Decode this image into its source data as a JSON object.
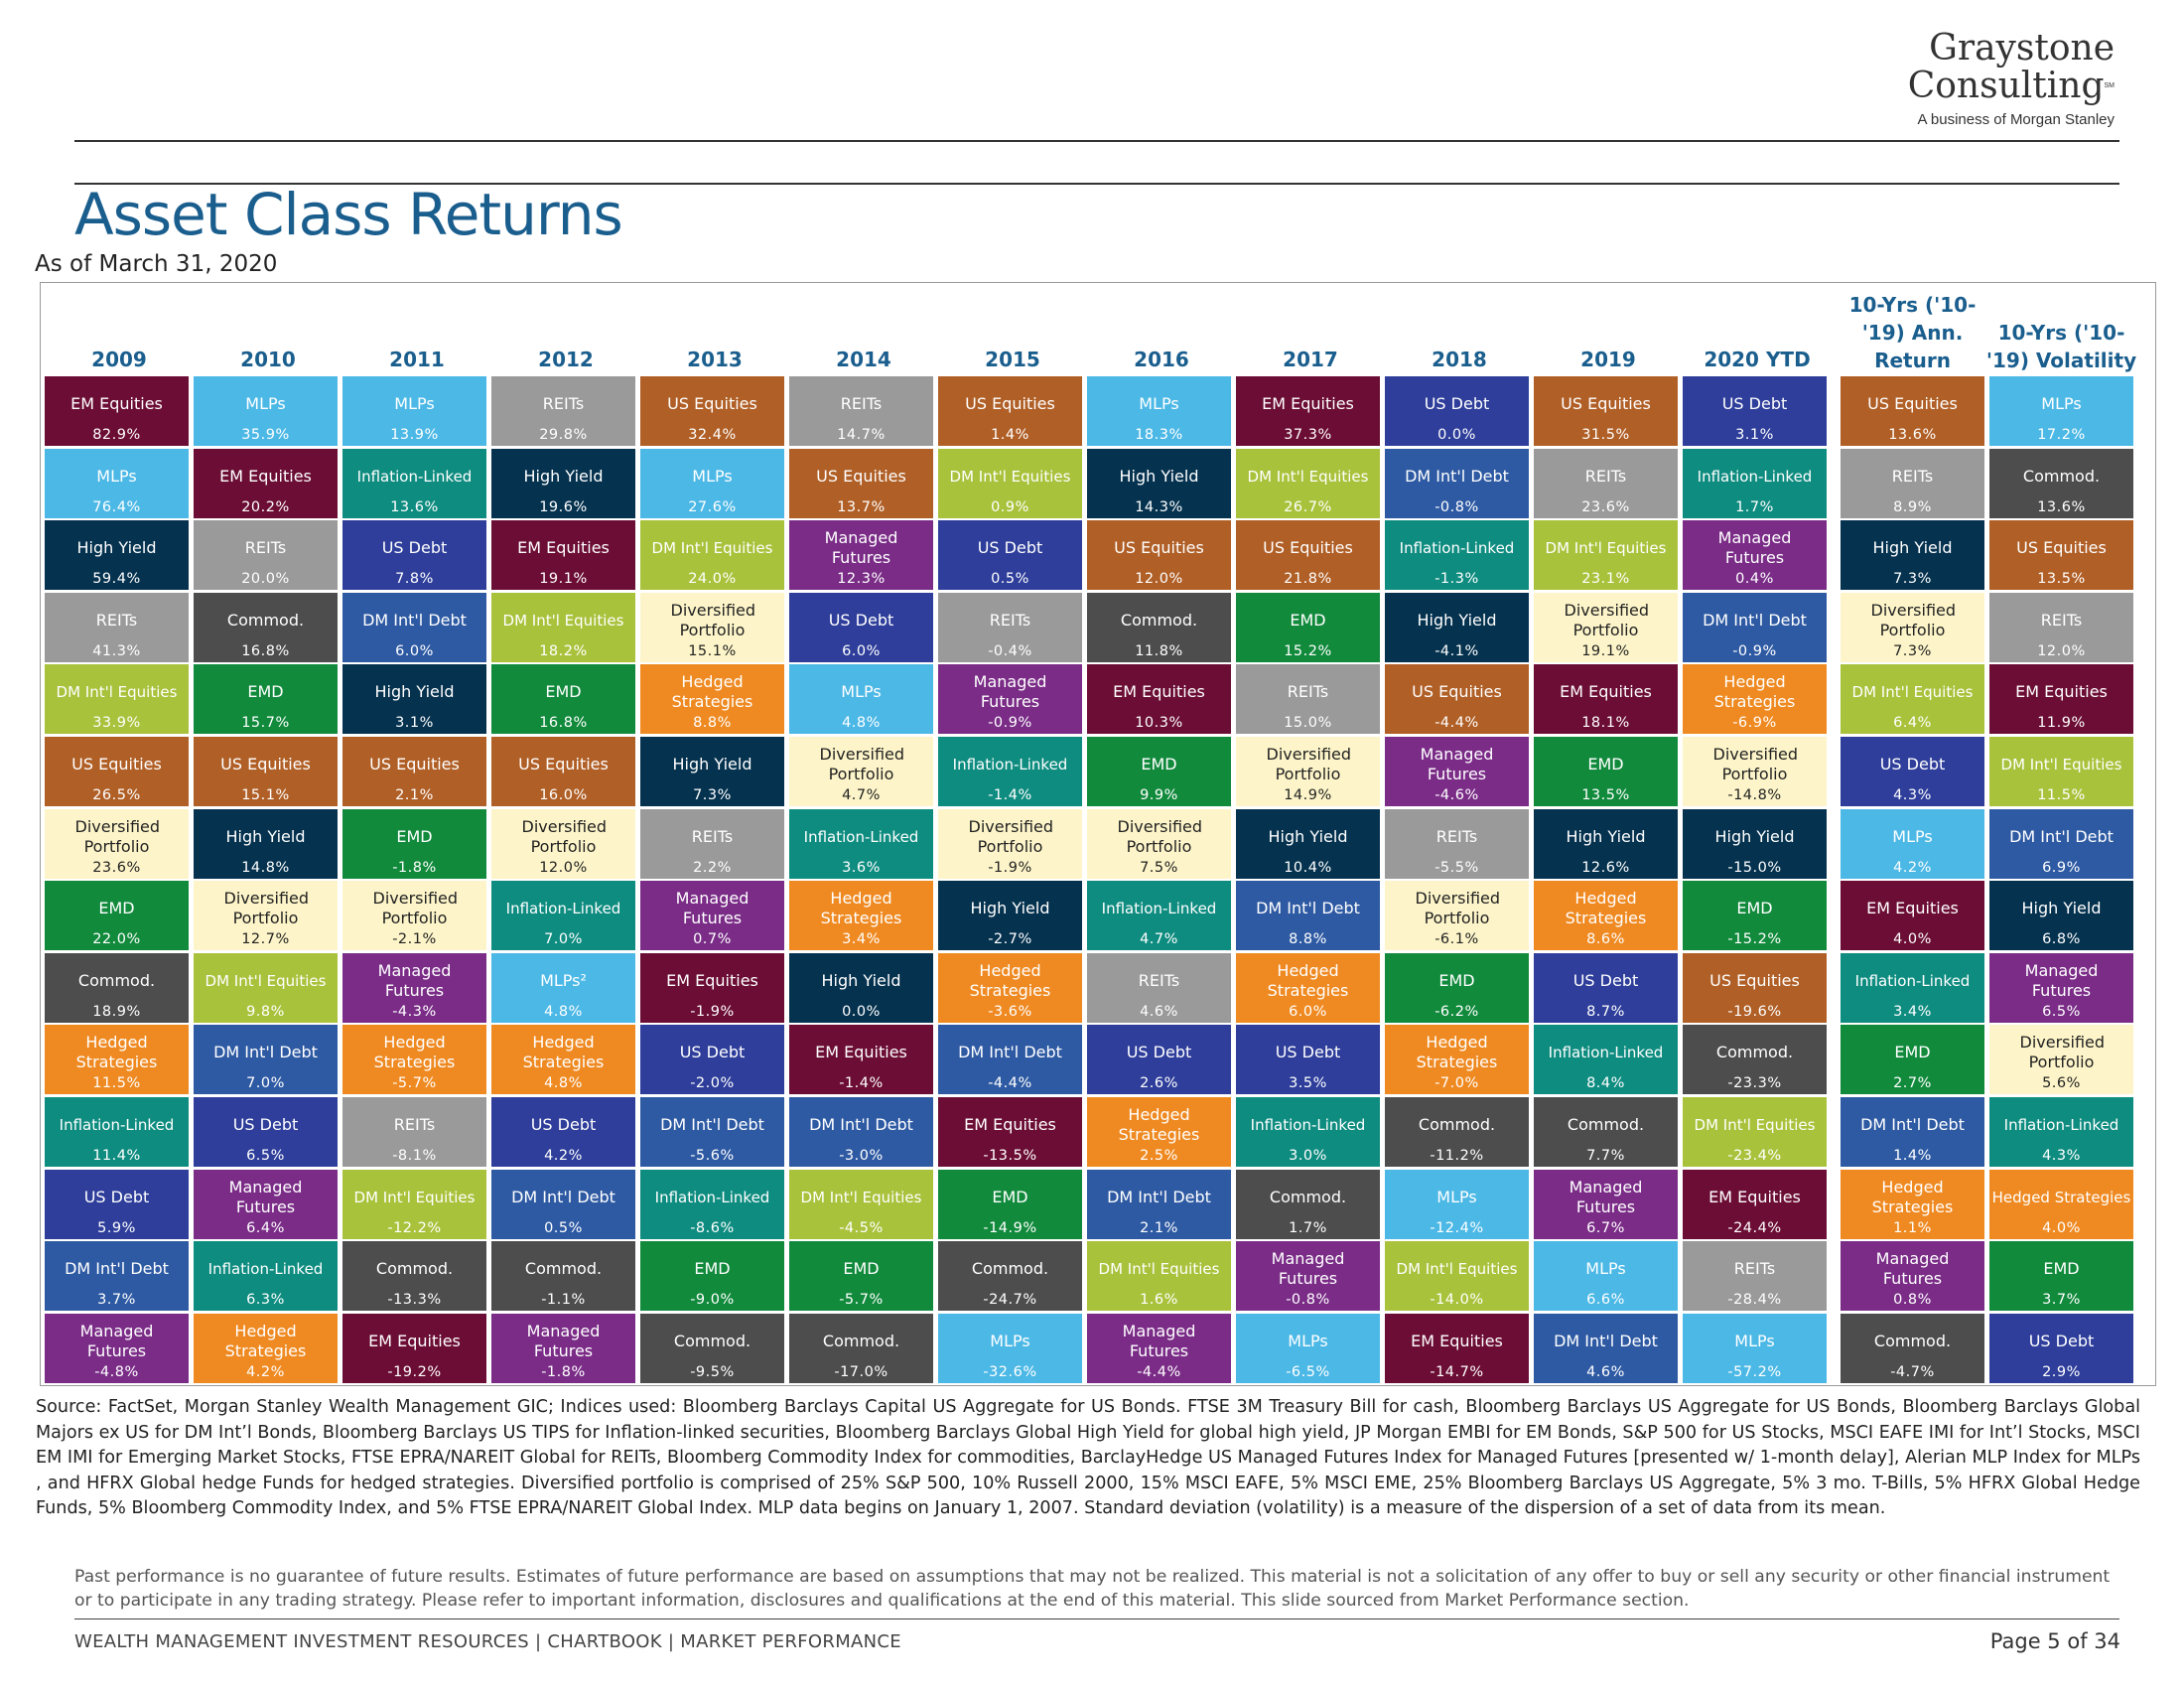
{
  "brand": {
    "name_line1": "Graystone",
    "name_line2": "Consulting",
    "sm_mark": "SM",
    "tagline": "A business of Morgan Stanley"
  },
  "title": "Asset Class Returns",
  "subtitle": "As of March 31, 2020",
  "colors": {
    "title": "#1a5e8e",
    "EM Equities": "#6b0d34",
    "MLPs": "#4cb8e6",
    "REITs": "#9a9a9a",
    "US Equities": "#b05f26",
    "High Yield": "#05324f",
    "Inflation-Linked": "#0f8c80",
    "DM Int'l Equities": "#a9c23c",
    "Managed Futures": "#7a2c87",
    "Diversified Portfolio": "#fdf5c9",
    "US Debt": "#2e3e9a",
    "DM Int'l Debt": "#2e5aa3",
    "EMD": "#118a3c",
    "Commod.": "#4d4d4d",
    "Hedged Strategies": "#ef8a22"
  },
  "chart_data": {
    "type": "table",
    "title": "Asset Class Returns",
    "subtitle": "As of March 31, 2020",
    "columns": [
      {
        "header": "2009",
        "cells": [
          [
            "EM Equities",
            "82.9%"
          ],
          [
            "MLPs",
            "76.4%"
          ],
          [
            "High Yield",
            "59.4%"
          ],
          [
            "REITs",
            "41.3%"
          ],
          [
            "DM Int'l Equities",
            "33.9%"
          ],
          [
            "US Equities",
            "26.5%"
          ],
          [
            "Diversified Portfolio",
            "23.6%"
          ],
          [
            "EMD",
            "22.0%"
          ],
          [
            "Commod.",
            "18.9%"
          ],
          [
            "Hedged Strategies",
            "11.5%"
          ],
          [
            "Inflation-Linked",
            "11.4%"
          ],
          [
            "US Debt",
            "5.9%"
          ],
          [
            "DM Int'l Debt",
            "3.7%"
          ],
          [
            "Managed Futures",
            "-4.8%"
          ]
        ]
      },
      {
        "header": "2010",
        "cells": [
          [
            "MLPs",
            "35.9%"
          ],
          [
            "EM Equities",
            "20.2%"
          ],
          [
            "REITs",
            "20.0%"
          ],
          [
            "Commod.",
            "16.8%"
          ],
          [
            "EMD",
            "15.7%"
          ],
          [
            "US Equities",
            "15.1%"
          ],
          [
            "High Yield",
            "14.8%"
          ],
          [
            "Diversified Portfolio",
            "12.7%"
          ],
          [
            "DM Int'l Equities",
            "9.8%"
          ],
          [
            "DM Int'l Debt",
            "7.0%"
          ],
          [
            "US Debt",
            "6.5%"
          ],
          [
            "Managed Futures",
            "6.4%"
          ],
          [
            "Inflation-Linked",
            "6.3%"
          ],
          [
            "Hedged Strategies",
            "4.2%"
          ]
        ]
      },
      {
        "header": "2011",
        "cells": [
          [
            "MLPs",
            "13.9%"
          ],
          [
            "Inflation-Linked",
            "13.6%"
          ],
          [
            "US Debt",
            "7.8%"
          ],
          [
            "DM Int'l Debt",
            "6.0%"
          ],
          [
            "High Yield",
            "3.1%"
          ],
          [
            "US Equities",
            "2.1%"
          ],
          [
            "EMD",
            "-1.8%"
          ],
          [
            "Diversified Portfolio",
            "-2.1%"
          ],
          [
            "Managed Futures",
            "-4.3%"
          ],
          [
            "Hedged Strategies",
            "-5.7%"
          ],
          [
            "REITs",
            "-8.1%"
          ],
          [
            "DM Int'l Equities",
            "-12.2%"
          ],
          [
            "Commod.",
            "-13.3%"
          ],
          [
            "EM Equities",
            "-19.2%"
          ]
        ]
      },
      {
        "header": "2012",
        "cells": [
          [
            "REITs",
            "29.8%"
          ],
          [
            "High Yield",
            "19.6%"
          ],
          [
            "EM Equities",
            "19.1%"
          ],
          [
            "DM Int'l Equities",
            "18.2%"
          ],
          [
            "EMD",
            "16.8%"
          ],
          [
            "US Equities",
            "16.0%"
          ],
          [
            "Diversified Portfolio",
            "12.0%"
          ],
          [
            "Inflation-Linked",
            "7.0%"
          ],
          [
            "MLPs²",
            "4.8%"
          ],
          [
            "Hedged Strategies",
            "4.8%"
          ],
          [
            "US Debt",
            "4.2%"
          ],
          [
            "DM Int'l Debt",
            "0.5%"
          ],
          [
            "Commod.",
            "-1.1%"
          ],
          [
            "Managed Futures",
            "-1.8%"
          ]
        ]
      },
      {
        "header": "2013",
        "cells": [
          [
            "US Equities",
            "32.4%"
          ],
          [
            "MLPs",
            "27.6%"
          ],
          [
            "DM Int'l Equities",
            "24.0%"
          ],
          [
            "Diversified Portfolio",
            "15.1%"
          ],
          [
            "Hedged Strategies",
            "8.8%"
          ],
          [
            "High Yield",
            "7.3%"
          ],
          [
            "REITs",
            "2.2%"
          ],
          [
            "Managed Futures",
            "0.7%"
          ],
          [
            "EM Equities",
            "-1.9%"
          ],
          [
            "US Debt",
            "-2.0%"
          ],
          [
            "DM Int'l Debt",
            "-5.6%"
          ],
          [
            "Inflation-Linked",
            "-8.6%"
          ],
          [
            "EMD",
            "-9.0%"
          ],
          [
            "Commod.",
            "-9.5%"
          ]
        ]
      },
      {
        "header": "2014",
        "cells": [
          [
            "REITs",
            "14.7%"
          ],
          [
            "US Equities",
            "13.7%"
          ],
          [
            "Managed Futures",
            "12.3%"
          ],
          [
            "US Debt",
            "6.0%"
          ],
          [
            "MLPs",
            "4.8%"
          ],
          [
            "Diversified Portfolio",
            "4.7%"
          ],
          [
            "Inflation-Linked",
            "3.6%"
          ],
          [
            "Hedged Strategies",
            "3.4%"
          ],
          [
            "High Yield",
            "0.0%"
          ],
          [
            "EM Equities",
            "-1.4%"
          ],
          [
            "DM Int'l Debt",
            "-3.0%"
          ],
          [
            "DM Int'l Equities",
            "-4.5%"
          ],
          [
            "EMD",
            "-5.7%"
          ],
          [
            "Commod.",
            "-17.0%"
          ]
        ]
      },
      {
        "header": "2015",
        "cells": [
          [
            "US Equities",
            "1.4%"
          ],
          [
            "DM Int'l Equities",
            "0.9%"
          ],
          [
            "US Debt",
            "0.5%"
          ],
          [
            "REITs",
            "-0.4%"
          ],
          [
            "Managed Futures",
            "-0.9%"
          ],
          [
            "Inflation-Linked",
            "-1.4%"
          ],
          [
            "Diversified Portfolio",
            "-1.9%"
          ],
          [
            "High Yield",
            "-2.7%"
          ],
          [
            "Hedged Strategies",
            "-3.6%"
          ],
          [
            "DM Int'l Debt",
            "-4.4%"
          ],
          [
            "EM Equities",
            "-13.5%"
          ],
          [
            "EMD",
            "-14.9%"
          ],
          [
            "Commod.",
            "-24.7%"
          ],
          [
            "MLPs",
            "-32.6%"
          ]
        ]
      },
      {
        "header": "2016",
        "cells": [
          [
            "MLPs",
            "18.3%"
          ],
          [
            "High Yield",
            "14.3%"
          ],
          [
            "US Equities",
            "12.0%"
          ],
          [
            "Commod.",
            "11.8%"
          ],
          [
            "EM Equities",
            "10.3%"
          ],
          [
            "EMD",
            "9.9%"
          ],
          [
            "Diversified Portfolio",
            "7.5%"
          ],
          [
            "Inflation-Linked",
            "4.7%"
          ],
          [
            "REITs",
            "4.6%"
          ],
          [
            "US Debt",
            "2.6%"
          ],
          [
            "Hedged Strategies",
            "2.5%"
          ],
          [
            "DM Int'l Debt",
            "2.1%"
          ],
          [
            "DM Int'l Equities",
            "1.6%"
          ],
          [
            "Managed Futures",
            "-4.4%"
          ]
        ]
      },
      {
        "header": "2017",
        "cells": [
          [
            "EM Equities",
            "37.3%"
          ],
          [
            "DM Int'l Equities",
            "26.7%"
          ],
          [
            "US Equities",
            "21.8%"
          ],
          [
            "EMD",
            "15.2%"
          ],
          [
            "REITs",
            "15.0%"
          ],
          [
            "Diversified Portfolio",
            "14.9%"
          ],
          [
            "High Yield",
            "10.4%"
          ],
          [
            "DM Int'l Debt",
            "8.8%"
          ],
          [
            "Hedged Strategies",
            "6.0%"
          ],
          [
            "US Debt",
            "3.5%"
          ],
          [
            "Inflation-Linked",
            "3.0%"
          ],
          [
            "Commod.",
            "1.7%"
          ],
          [
            "Managed Futures",
            "-0.8%"
          ],
          [
            "MLPs",
            "-6.5%"
          ]
        ]
      },
      {
        "header": "2018",
        "cells": [
          [
            "US Debt",
            "0.0%"
          ],
          [
            "DM Int'l Debt",
            "-0.8%"
          ],
          [
            "Inflation-Linked",
            "-1.3%"
          ],
          [
            "High Yield",
            "-4.1%"
          ],
          [
            "US Equities",
            "-4.4%"
          ],
          [
            "Managed Futures",
            "-4.6%"
          ],
          [
            "REITs",
            "-5.5%"
          ],
          [
            "Diversified Portfolio",
            "-6.1%"
          ],
          [
            "EMD",
            "-6.2%"
          ],
          [
            "Hedged Strategies",
            "-7.0%"
          ],
          [
            "Commod.",
            "-11.2%"
          ],
          [
            "MLPs",
            "-12.4%"
          ],
          [
            "DM Int'l Equities",
            "-14.0%"
          ],
          [
            "EM Equities",
            "-14.7%"
          ]
        ]
      },
      {
        "header": "2019",
        "cells": [
          [
            "US Equities",
            "31.5%"
          ],
          [
            "REITs",
            "23.6%"
          ],
          [
            "DM Int'l Equities",
            "23.1%"
          ],
          [
            "Diversified Portfolio",
            "19.1%"
          ],
          [
            "EM Equities",
            "18.1%"
          ],
          [
            "EMD",
            "13.5%"
          ],
          [
            "High Yield",
            "12.6%"
          ],
          [
            "Hedged Strategies",
            "8.6%"
          ],
          [
            "US Debt",
            "8.7%"
          ],
          [
            "Inflation-Linked",
            "8.4%"
          ],
          [
            "Commod.",
            "7.7%"
          ],
          [
            "Managed Futures",
            "6.7%"
          ],
          [
            "MLPs",
            "6.6%"
          ],
          [
            "DM Int'l Debt",
            "4.6%"
          ]
        ]
      },
      {
        "header": "2020 YTD",
        "cells": [
          [
            "US Debt",
            "3.1%"
          ],
          [
            "Inflation-Linked",
            "1.7%"
          ],
          [
            "Managed Futures",
            "0.4%"
          ],
          [
            "DM Int'l Debt",
            "-0.9%"
          ],
          [
            "Hedged Strategies",
            "-6.9%"
          ],
          [
            "Diversified Portfolio",
            "-14.8%"
          ],
          [
            "High Yield",
            "-15.0%"
          ],
          [
            "EMD",
            "-15.2%"
          ],
          [
            "US Equities",
            "-19.6%"
          ],
          [
            "Commod.",
            "-23.3%"
          ],
          [
            "DM Int'l Equities",
            "-23.4%"
          ],
          [
            "EM Equities",
            "-24.4%"
          ],
          [
            "REITs",
            "-28.4%"
          ],
          [
            "MLPs",
            "-57.2%"
          ]
        ]
      },
      {
        "header": "10-Yrs ('10-'19) Ann. Return",
        "cells": [
          [
            "US Equities",
            "13.6%"
          ],
          [
            "REITs",
            "8.9%"
          ],
          [
            "High Yield",
            "7.3%"
          ],
          [
            "Diversified Portfolio",
            "7.3%"
          ],
          [
            "DM Int'l Equities",
            "6.4%"
          ],
          [
            "US Debt",
            "4.3%"
          ],
          [
            "MLPs",
            "4.2%"
          ],
          [
            "EM Equities",
            "4.0%"
          ],
          [
            "Inflation-Linked",
            "3.4%"
          ],
          [
            "EMD",
            "2.7%"
          ],
          [
            "DM Int'l Debt",
            "1.4%"
          ],
          [
            "Hedged Strategies",
            "1.1%"
          ],
          [
            "Managed Futures",
            "0.8%"
          ],
          [
            "Commod.",
            "-4.7%"
          ]
        ]
      },
      {
        "header": "10-Yrs ('10-'19) Volatility",
        "cells": [
          [
            "MLPs",
            "17.2%"
          ],
          [
            "Commod.",
            "13.6%"
          ],
          [
            "US Equities",
            "13.5%"
          ],
          [
            "REITs",
            "12.0%"
          ],
          [
            "EM Equities",
            "11.9%"
          ],
          [
            "DM Int'l Equities",
            "11.5%"
          ],
          [
            "DM Int'l Debt",
            "6.9%"
          ],
          [
            "High Yield",
            "6.8%"
          ],
          [
            "Managed Futures",
            "6.5%"
          ],
          [
            "Diversified Portfolio",
            "5.6%"
          ],
          [
            "Inflation-Linked",
            "4.3%"
          ],
          [
            "Hedged Strategies",
            "4.0%"
          ],
          [
            "EMD",
            "3.7%"
          ],
          [
            "US Debt",
            "2.9%"
          ]
        ]
      }
    ]
  },
  "source_text": "Source: FactSet, Morgan Stanley Wealth Management GIC; Indices used: Bloomberg Barclays Capital US Aggregate for US Bonds. FTSE 3M Treasury Bill for cash, Bloomberg Barclays US Aggregate for US Bonds, Bloomberg Barclays Global Majors ex US for DM Int’l Bonds, Bloomberg Barclays US TIPS for Inflation-linked securities, Bloomberg Barclays Global High Yield for global high yield, JP Morgan EMBI for EM Bonds, S&P 500 for US Stocks, MSCI EAFE IMI for Int’l Stocks, MSCI EM IMI for Emerging Market Stocks, FTSE EPRA/NAREIT Global for REITs, Bloomberg Commodity Index for commodities, BarclayHedge US Managed Futures Index for Managed Futures [presented w/ 1-month delay], Alerian MLP Index for MLPs , and HFRX Global hedge Funds for hedged strategies. Diversified portfolio is comprised of 25% S&P 500, 10% Russell 2000, 15% MSCI EAFE, 5% MSCI EME, 25% Bloomberg Barclays US Aggregate, 5% 3 mo. T-Bills, 5% HFRX Global Hedge Funds, 5% Bloomberg Commodity Index, and 5% FTSE EPRA/NAREIT Global Index. MLP data begins on January 1, 2007. Standard deviation (volatility) is a measure of the dispersion of a set of data from its mean.",
  "disclaimer_text": "Past performance is no guarantee of future results. Estimates of future performance are based on assumptions that may not be realized. This material is not a solicitation of any offer to buy or sell any security or other financial instrument or to participate in any trading strategy. Please refer to important information, disclosures and qualifications at the end of this material. This slide sourced from Market Performance section.",
  "footer": {
    "left": "WEALTH MANAGEMENT INVESTMENT RESOURCES | CHARTBOOK | MARKET PERFORMANCE",
    "page": "Page 5 of 34"
  }
}
